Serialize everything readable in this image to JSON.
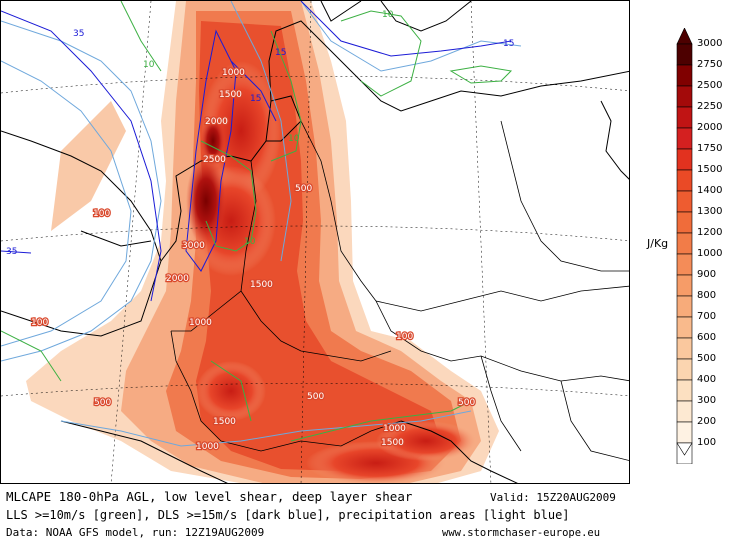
{
  "map": {
    "land_color": "#ffffff",
    "border_color": "#000000",
    "lls_color": "#3cb043",
    "dls_color": "#1b1bd6",
    "precip_color": "#6fa8dc",
    "contour_labels": {
      "cape": [
        "1000",
        "1500",
        "2000",
        "2500",
        "3000",
        "2000",
        "1500",
        "1000",
        "500",
        "100",
        "500",
        "500",
        "100",
        "500",
        "1500",
        "1000",
        "1000",
        "1500",
        "100"
      ],
      "shear_lls": [
        "10",
        "10",
        "10",
        "10"
      ],
      "shear_dls": [
        "15",
        "15",
        "15",
        "35",
        "35"
      ]
    }
  },
  "colorbar": {
    "unit": "J/Kg",
    "levels": [
      "3000",
      "2750",
      "2500",
      "2250",
      "2000",
      "1750",
      "1500",
      "1400",
      "1300",
      "1200",
      "1000",
      "900",
      "800",
      "700",
      "600",
      "500",
      "400",
      "300",
      "200",
      "100"
    ],
    "colors": [
      "#4d0000",
      "#800000",
      "#a30a0a",
      "#c01414",
      "#d42020",
      "#e2321f",
      "#ea4a26",
      "#ee5c30",
      "#f06c3a",
      "#f27c48",
      "#f48c58",
      "#f69c68",
      "#f7ab7a",
      "#f9ba8c",
      "#fac89e",
      "#fbd5b0",
      "#fce0c1",
      "#fde9d2",
      "#fef2e3",
      "#ffffff"
    ]
  },
  "footer": {
    "title": "MLCAPE 180-0hPa AGL, low level shear, deep layer shear",
    "valid": "Valid: 15Z20AUG2009",
    "line2": "LLS >=10m/s [green], DLS >=15m/s [dark blue], precipitation areas [light blue]",
    "line3": "Data: NOAA GFS model, run: 12Z19AUG2009",
    "url": "www.stormchaser-europe.eu"
  }
}
